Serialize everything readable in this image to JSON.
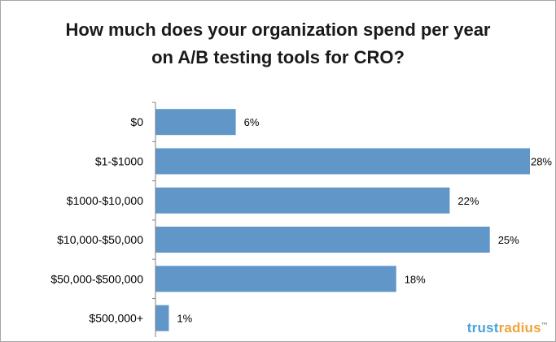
{
  "chart_data": {
    "type": "bar",
    "orientation": "horizontal",
    "title_lines": [
      "How much does your organization spend per year",
      "on A/B testing tools for CRO?"
    ],
    "categories": [
      "$0",
      "$1-$1000",
      "$1000-$10,000",
      "$10,000-$50,000",
      "$50,000-$500,000",
      "$500,000+"
    ],
    "values": [
      6,
      28,
      22,
      25,
      18,
      1
    ],
    "value_labels": [
      "6%",
      "28%",
      "22%",
      "25%",
      "18%",
      "1%"
    ],
    "xlim": [
      0,
      28
    ],
    "bar_color": "#6096c8",
    "grid": false,
    "legend": "none"
  },
  "brand": {
    "part1": "trust",
    "part2": "radius",
    "mark": "™"
  }
}
